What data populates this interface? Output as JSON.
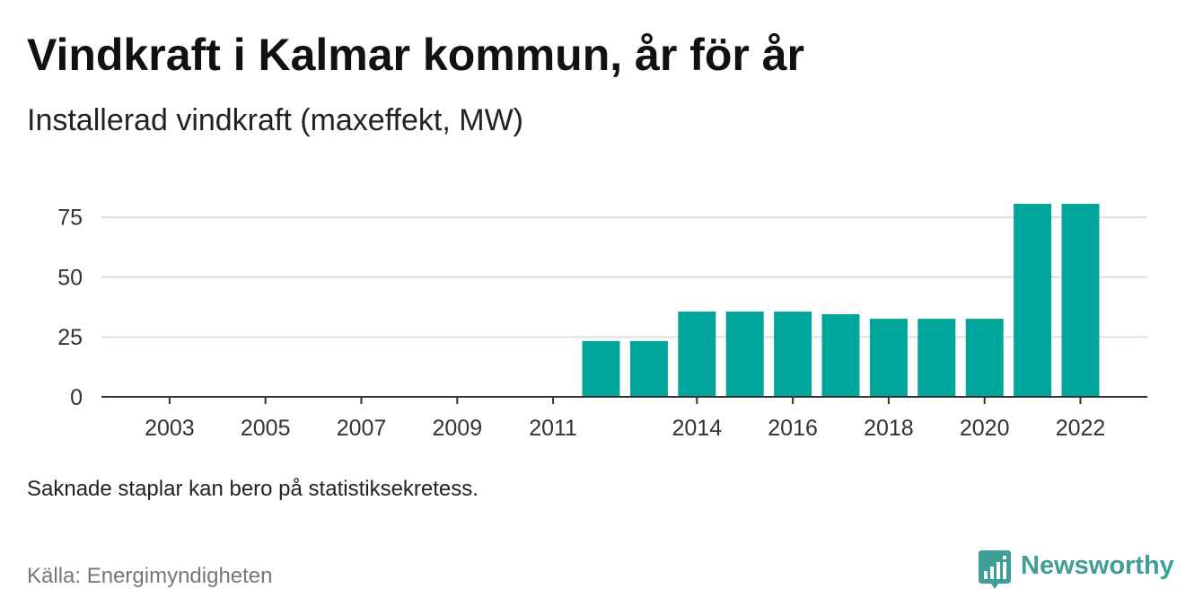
{
  "chart_data": {
    "type": "bar",
    "title": "Vindkraft i Kalmar kommun, år för år",
    "subtitle": "Installerad vindkraft (maxeffekt, MW)",
    "x": [
      2012,
      2013,
      2014,
      2015,
      2016,
      2017,
      2018,
      2019,
      2020,
      2021,
      2022
    ],
    "values": [
      23.3,
      23.3,
      35.6,
      35.6,
      35.6,
      34.5,
      32.6,
      32.6,
      32.6,
      80.6,
      80.6
    ],
    "xlim": [
      2002,
      2022
    ],
    "ylim": [
      0,
      82
    ],
    "y_ticks": [
      0,
      25,
      50,
      75
    ],
    "x_ticks": [
      2003,
      2005,
      2007,
      2009,
      2011,
      2014,
      2016,
      2018,
      2020,
      2022
    ],
    "grid": {
      "y": true,
      "x": false
    },
    "bar_color": "#00a69c",
    "grid_color": "#dddddd",
    "axis_color": "#333333"
  },
  "note": "Saknade staplar kan bero på statistiksekretess.",
  "source": "Källa: Energimyndigheten",
  "brand": {
    "name": "Newsworthy",
    "icon": "newsworthy-logo-icon",
    "color": "#3f9e96"
  }
}
